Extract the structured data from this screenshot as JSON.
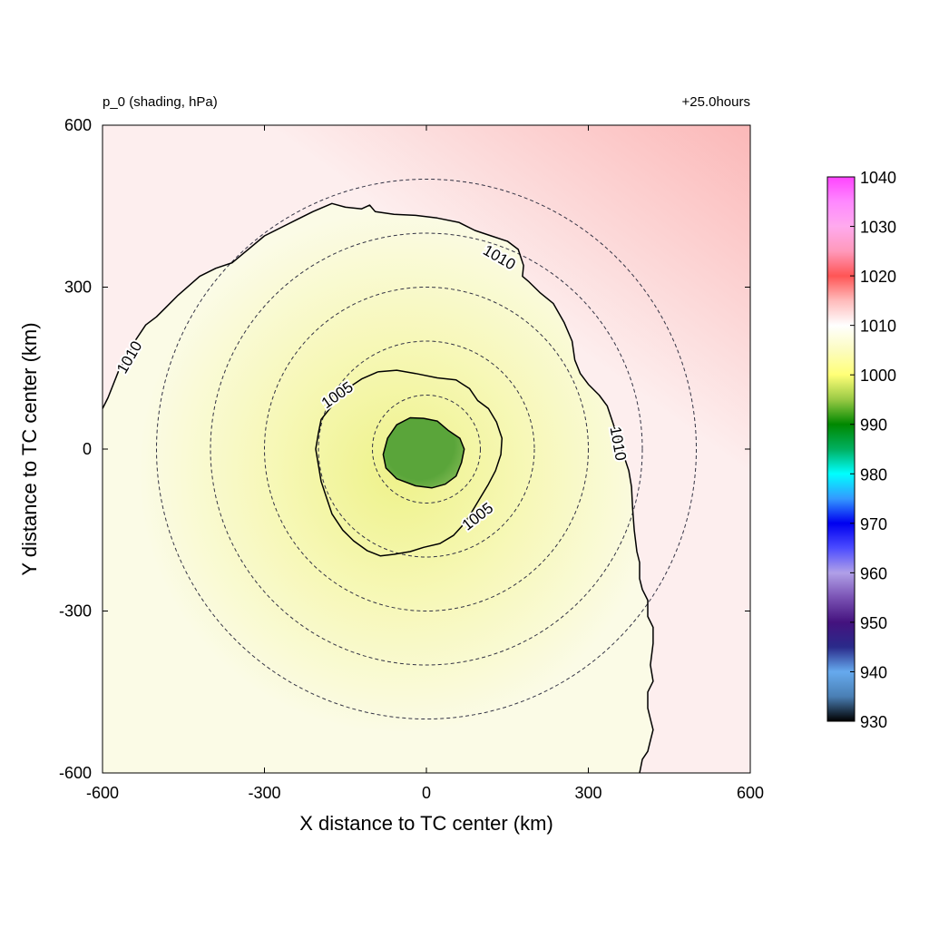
{
  "chart_data": {
    "type": "heatmap",
    "title_left": "p_0 (shading, hPa)",
    "title_right": "+25.0hours",
    "xlabel": "X distance to TC center (km)",
    "ylabel": "Y distance to TC center (km)",
    "xlim": [
      -600,
      600
    ],
    "ylim": [
      -600,
      600
    ],
    "xticks": [
      -600,
      -300,
      0,
      300,
      600
    ],
    "yticks": [
      -600,
      -300,
      0,
      300,
      600
    ],
    "xtick_labels": [
      "-600",
      "-300",
      "0",
      "300",
      "600"
    ],
    "ytick_labels": [
      "-600",
      "-300",
      "0",
      "300",
      "600"
    ],
    "center_pressure": 990,
    "range_rings_km": [
      100,
      200,
      300,
      400,
      500
    ],
    "contours": [
      {
        "level": 1010,
        "labels": [
          {
            "text": "1010",
            "x": -550,
            "y": 170,
            "angle": -60
          },
          {
            "text": "1010",
            "x": 135,
            "y": 355,
            "angle": 30
          },
          {
            "text": "1010",
            "x": 355,
            "y": 10,
            "angle": 80
          }
        ],
        "points": [
          [
            -600,
            75
          ],
          [
            -590,
            95
          ],
          [
            -580,
            120
          ],
          [
            -570,
            145
          ],
          [
            -555,
            170
          ],
          [
            -540,
            200
          ],
          [
            -520,
            230
          ],
          [
            -500,
            245
          ],
          [
            -480,
            265
          ],
          [
            -460,
            285
          ],
          [
            -420,
            320
          ],
          [
            -390,
            335
          ],
          [
            -360,
            345
          ],
          [
            -330,
            370
          ],
          [
            -300,
            395
          ],
          [
            -270,
            410
          ],
          [
            -240,
            425
          ],
          [
            -210,
            440
          ],
          [
            -175,
            455
          ],
          [
            -150,
            448
          ],
          [
            -120,
            445
          ],
          [
            -105,
            452
          ],
          [
            -95,
            440
          ],
          [
            -60,
            435
          ],
          [
            -20,
            433
          ],
          [
            20,
            428
          ],
          [
            60,
            420
          ],
          [
            90,
            405
          ],
          [
            120,
            395
          ],
          [
            150,
            385
          ],
          [
            170,
            370
          ],
          [
            180,
            340
          ],
          [
            178,
            320
          ],
          [
            190,
            310
          ],
          [
            210,
            290
          ],
          [
            235,
            270
          ],
          [
            255,
            235
          ],
          [
            270,
            200
          ],
          [
            275,
            165
          ],
          [
            285,
            140
          ],
          [
            300,
            120
          ],
          [
            320,
            100
          ],
          [
            335,
            80
          ],
          [
            345,
            50
          ],
          [
            355,
            20
          ],
          [
            365,
            -10
          ],
          [
            375,
            -40
          ],
          [
            380,
            -70
          ],
          [
            382,
            -110
          ],
          [
            385,
            -150
          ],
          [
            390,
            -190
          ],
          [
            395,
            -210
          ],
          [
            395,
            -240
          ],
          [
            400,
            -260
          ],
          [
            410,
            -280
          ],
          [
            410,
            -310
          ],
          [
            420,
            -330
          ],
          [
            420,
            -360
          ],
          [
            415,
            -400
          ],
          [
            420,
            -430
          ],
          [
            410,
            -450
          ],
          [
            410,
            -480
          ],
          [
            415,
            -500
          ],
          [
            420,
            -520
          ],
          [
            415,
            -540
          ],
          [
            410,
            -560
          ],
          [
            400,
            -575
          ],
          [
            395,
            -600
          ]
        ]
      },
      {
        "level": 1005,
        "labels": [
          {
            "text": "1005",
            "x": -165,
            "y": 100,
            "angle": -35
          },
          {
            "text": "1005",
            "x": 95,
            "y": -125,
            "angle": -38
          }
        ],
        "points": [
          [
            -90,
            143
          ],
          [
            -55,
            146
          ],
          [
            -20,
            140
          ],
          [
            20,
            132
          ],
          [
            55,
            128
          ],
          [
            80,
            112
          ],
          [
            95,
            90
          ],
          [
            115,
            75
          ],
          [
            130,
            50
          ],
          [
            140,
            20
          ],
          [
            138,
            -10
          ],
          [
            128,
            -40
          ],
          [
            115,
            -65
          ],
          [
            100,
            -90
          ],
          [
            85,
            -115
          ],
          [
            70,
            -138
          ],
          [
            50,
            -160
          ],
          [
            25,
            -175
          ],
          [
            -5,
            -182
          ],
          [
            -30,
            -190
          ],
          [
            -60,
            -195
          ],
          [
            -85,
            -198
          ],
          [
            -110,
            -188
          ],
          [
            -135,
            -170
          ],
          [
            -155,
            -150
          ],
          [
            -175,
            -120
          ],
          [
            -185,
            -90
          ],
          [
            -195,
            -60
          ],
          [
            -200,
            -30
          ],
          [
            -205,
            0
          ],
          [
            -200,
            30
          ],
          [
            -195,
            55
          ],
          [
            -175,
            80
          ],
          [
            -150,
            110
          ],
          [
            -120,
            130
          ],
          [
            -90,
            143
          ]
        ]
      },
      {
        "level": 995,
        "labels": [],
        "points": [
          [
            -5,
            57
          ],
          [
            20,
            52
          ],
          [
            40,
            35
          ],
          [
            62,
            20
          ],
          [
            70,
            0
          ],
          [
            65,
            -25
          ],
          [
            55,
            -50
          ],
          [
            35,
            -65
          ],
          [
            10,
            -72
          ],
          [
            -20,
            -68
          ],
          [
            -55,
            -55
          ],
          [
            -75,
            -35
          ],
          [
            -80,
            -10
          ],
          [
            -72,
            20
          ],
          [
            -55,
            45
          ],
          [
            -30,
            58
          ],
          [
            -5,
            57
          ]
        ]
      }
    ],
    "colorbar": {
      "min": 930,
      "max": 1040,
      "ticks": [
        1040,
        1030,
        1020,
        1010,
        1000,
        990,
        980,
        970,
        960,
        950,
        940,
        930
      ],
      "tick_labels": [
        "1040",
        "1030",
        "1020",
        "1010",
        "1000",
        "990",
        "980",
        "970",
        "960",
        "950",
        "940",
        "930"
      ],
      "color_stops": [
        {
          "value": 930,
          "color": "#000000"
        },
        {
          "value": 935,
          "color": "#4a7fb4"
        },
        {
          "value": 940,
          "color": "#66aaee"
        },
        {
          "value": 945,
          "color": "#2a2a8a"
        },
        {
          "value": 950,
          "color": "#44127e"
        },
        {
          "value": 955,
          "color": "#7a52b4"
        },
        {
          "value": 960,
          "color": "#b0a0e8"
        },
        {
          "value": 965,
          "color": "#4c4cff"
        },
        {
          "value": 970,
          "color": "#0000f0"
        },
        {
          "value": 975,
          "color": "#3399ff"
        },
        {
          "value": 980,
          "color": "#00ffff"
        },
        {
          "value": 985,
          "color": "#00b060"
        },
        {
          "value": 990,
          "color": "#008800"
        },
        {
          "value": 995,
          "color": "#99c944"
        },
        {
          "value": 1000,
          "color": "#ffff77"
        },
        {
          "value": 1005,
          "color": "#fcfcc0"
        },
        {
          "value": 1010,
          "color": "#ffffff"
        },
        {
          "value": 1015,
          "color": "#ffbbbb"
        },
        {
          "value": 1020,
          "color": "#ff5555"
        },
        {
          "value": 1025,
          "color": "#ff99bb"
        },
        {
          "value": 1030,
          "color": "#ffaaee"
        },
        {
          "value": 1035,
          "color": "#ff88ff"
        },
        {
          "value": 1040,
          "color": "#ff44ff"
        }
      ]
    },
    "field_colors": {
      "core": "#5aa53a",
      "core_edge": "#9cc865",
      "inner": "#eef28a",
      "mid": "#f7f8b8",
      "env": "#fbfbe6",
      "outer": "#fdeeee",
      "ne_corner": "#fbb8b8"
    },
    "ring_color": "#333344",
    "contour_color": "#000000"
  }
}
